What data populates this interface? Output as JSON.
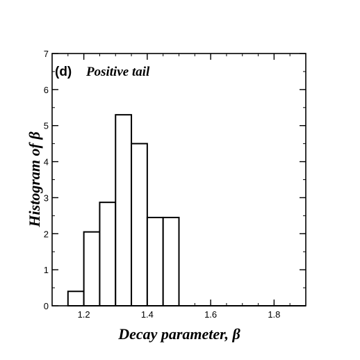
{
  "chart_data": {
    "type": "bar",
    "panel_label": "(d)",
    "annotation": "Positive tail",
    "xlabel": "Decay parameter, β",
    "ylabel": "Histogram of β",
    "xlim": [
      1.1,
      1.9
    ],
    "ylim": [
      0,
      7
    ],
    "x_ticks": [
      1.2,
      1.4,
      1.6,
      1.8
    ],
    "x_tick_labels": [
      "1.2",
      "1.4",
      "1.6",
      "1.8"
    ],
    "y_ticks": [
      0,
      1,
      2,
      3,
      4,
      5,
      6,
      7
    ],
    "y_tick_labels": [
      "0",
      "1",
      "2",
      "3",
      "4",
      "5",
      "6",
      "7"
    ],
    "bin_width": 0.05,
    "bins": [
      {
        "x": 1.15,
        "value": 0.4
      },
      {
        "x": 1.2,
        "value": 2.05
      },
      {
        "x": 1.25,
        "value": 2.87
      },
      {
        "x": 1.3,
        "value": 5.3
      },
      {
        "x": 1.35,
        "value": 4.5
      },
      {
        "x": 1.4,
        "value": 2.45
      },
      {
        "x": 1.45,
        "value": 2.45
      }
    ],
    "grid": false,
    "legend": "none",
    "bar_color": "#ffffff",
    "edge_color": "#000000"
  }
}
